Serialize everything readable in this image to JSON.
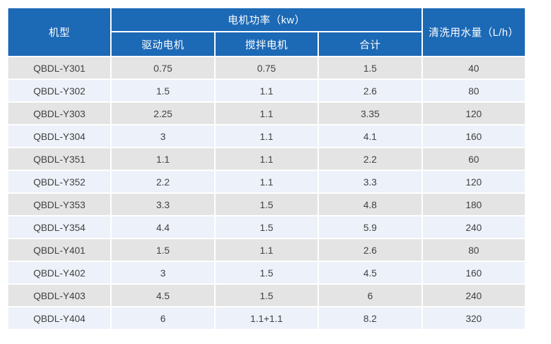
{
  "table": {
    "header": {
      "model": "机型",
      "motor_power_group": "电机功率（kw）",
      "drive_motor": "驱动电机",
      "mixing_motor": "搅拌电机",
      "total": "合计",
      "water_usage": "清洗用水量（L/h）"
    },
    "rows": [
      {
        "model": "QBDL-Y301",
        "drive": "0.75",
        "mixing": "0.75",
        "total": "1.5",
        "water": "40"
      },
      {
        "model": "QBDL-Y302",
        "drive": "1.5",
        "mixing": "1.1",
        "total": "2.6",
        "water": "80"
      },
      {
        "model": "QBDL-Y303",
        "drive": "2.25",
        "mixing": "1.1",
        "total": "3.35",
        "water": "120"
      },
      {
        "model": "QBDL-Y304",
        "drive": "3",
        "mixing": "1.1",
        "total": "4.1",
        "water": "160"
      },
      {
        "model": "QBDL-Y351",
        "drive": "1.1",
        "mixing": "1.1",
        "total": "2.2",
        "water": "60"
      },
      {
        "model": "QBDL-Y352",
        "drive": "2.2",
        "mixing": "1.1",
        "total": "3.3",
        "water": "120"
      },
      {
        "model": "QBDL-Y353",
        "drive": "3.3",
        "mixing": "1.5",
        "total": "4.8",
        "water": "180"
      },
      {
        "model": "QBDL-Y354",
        "drive": "4.4",
        "mixing": "1.5",
        "total": "5.9",
        "water": "240"
      },
      {
        "model": "QBDL-Y401",
        "drive": "1.5",
        "mixing": "1.1",
        "total": "2.6",
        "water": "80"
      },
      {
        "model": "QBDL-Y402",
        "drive": "3",
        "mixing": "1.5",
        "total": "4.5",
        "water": "160"
      },
      {
        "model": "QBDL-Y403",
        "drive": "4.5",
        "mixing": "1.5",
        "total": "6",
        "water": "240"
      },
      {
        "model": "QBDL-Y404",
        "drive": "6",
        "mixing": "1.1+1.1",
        "total": "8.2",
        "water": "320"
      }
    ],
    "colors": {
      "header_bg": "#1c69b6",
      "header_text": "#ffffff",
      "row_odd_bg": "#e4e4e4",
      "row_even_bg": "#edf1f9",
      "cell_text": "#404040",
      "page_bg": "#ffffff"
    }
  }
}
